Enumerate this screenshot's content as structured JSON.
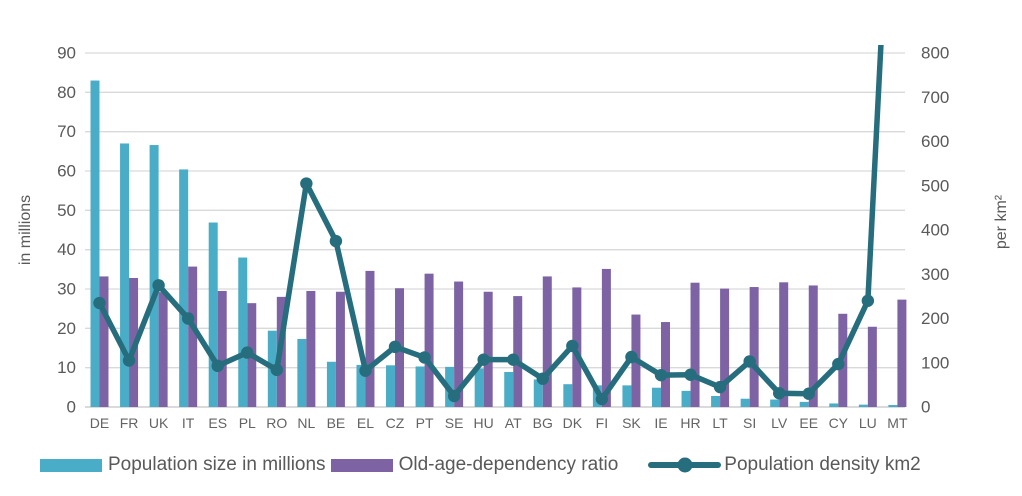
{
  "colors": {
    "population_bar": "#4aadc7",
    "dependency_bar": "#7d63a4",
    "density_line": "#266d7d",
    "gridline": "#d9d9d9",
    "baseline": "#c3c3c3",
    "axis_text": "#595959",
    "category_text": "#636363",
    "background": "#ffffff"
  },
  "left_axis": {
    "title": "in millions",
    "ticks": [
      0,
      10,
      20,
      30,
      40,
      50,
      60,
      70,
      80,
      90
    ],
    "max": 90
  },
  "right_axis": {
    "title": "per km²",
    "ticks": [
      0,
      100,
      200,
      300,
      400,
      500,
      600,
      700,
      800
    ],
    "max": 800
  },
  "legend": {
    "population": "Population size in millions",
    "dependency": "Old-age-dependency ratio",
    "density": "Population density km2"
  },
  "chart_data": {
    "type": "combo: grouped bar + line",
    "categories": [
      "DE",
      "FR",
      "UK",
      "IT",
      "ES",
      "PL",
      "RO",
      "NL",
      "BE",
      "EL",
      "CZ",
      "PT",
      "SE",
      "HU",
      "AT",
      "BG",
      "DK",
      "FI",
      "SK",
      "IE",
      "HR",
      "LT",
      "SI",
      "LV",
      "EE",
      "CY",
      "LU",
      "MT"
    ],
    "series": [
      {
        "name": "Population size in millions",
        "type": "bar",
        "axis": "left",
        "color": "#4aadc7",
        "values": [
          83.0,
          67.0,
          66.6,
          60.4,
          46.9,
          38.0,
          19.4,
          17.3,
          11.5,
          10.7,
          10.6,
          10.3,
          10.2,
          9.8,
          8.9,
          7.0,
          5.8,
          5.5,
          5.5,
          4.9,
          4.1,
          2.8,
          2.1,
          1.9,
          1.3,
          0.9,
          0.6,
          0.5
        ]
      },
      {
        "name": "Old-age-dependency ratio",
        "type": "bar",
        "axis": "left",
        "color": "#7d63a4",
        "values": [
          33.2,
          32.8,
          29.2,
          35.7,
          29.5,
          26.4,
          28.0,
          29.5,
          29.3,
          34.6,
          30.2,
          33.9,
          31.9,
          29.3,
          28.2,
          33.2,
          30.4,
          35.1,
          23.5,
          21.6,
          31.6,
          30.1,
          30.5,
          31.7,
          30.9,
          23.7,
          20.4,
          27.3
        ]
      },
      {
        "name": "Population density km2",
        "type": "line",
        "axis": "right",
        "color": "#266d7d",
        "values": [
          235,
          105,
          275,
          200,
          93,
          123,
          84,
          505,
          375,
          82,
          136,
          112,
          25,
          107,
          107,
          64,
          138,
          18,
          113,
          72,
          73,
          45,
          103,
          31,
          30,
          97,
          240,
          1548
        ],
        "note": "MT (~1548 per km2) exceeds the 800 axis maximum; the line is clipped at the top of the plot area"
      }
    ],
    "left_axis": {
      "label": "in millions",
      "range": [
        0,
        90
      ],
      "tick_step": 10
    },
    "right_axis": {
      "label": "per km²",
      "range": [
        0,
        800
      ],
      "tick_step": 100
    },
    "grid": "horizontal only",
    "legend_position": "bottom"
  }
}
